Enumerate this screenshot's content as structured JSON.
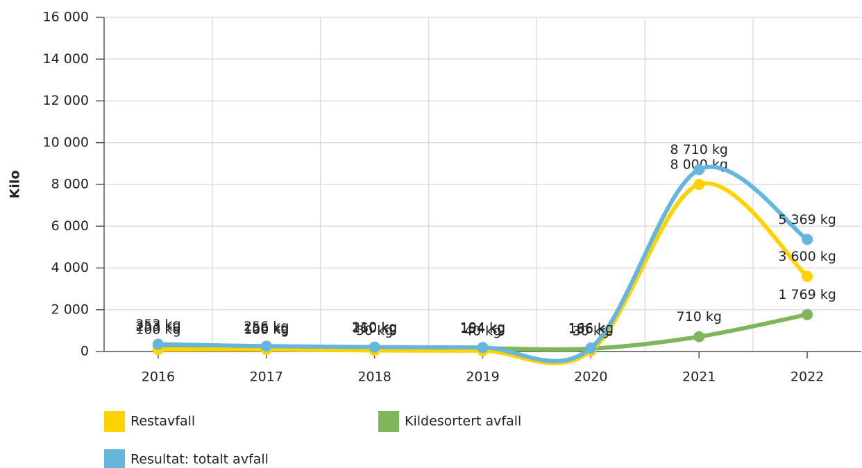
{
  "chart_data": {
    "type": "line",
    "y_label": "Kilo",
    "categories": [
      "2016",
      "2017",
      "2018",
      "2019",
      "2020",
      "2021",
      "2022"
    ],
    "series": [
      {
        "name": "Kildesortert avfall",
        "color": "#7fb65c",
        "values": [
          253,
          156,
          160,
          154,
          136,
          710,
          1769
        ],
        "value_labels": [
          "253 kg",
          "156 kg",
          "160 kg",
          "154 kg",
          "136 kg",
          "710 kg",
          "1 769 kg"
        ]
      },
      {
        "name": "Restavfall",
        "color": "#ffd200",
        "values": [
          100,
          100,
          50,
          40,
          30,
          8000,
          3600
        ],
        "value_labels": [
          "100 kg",
          "100 kg",
          "50 kg",
          "40 kg",
          "30 kg",
          "8 000 kg",
          "3 600 kg"
        ]
      },
      {
        "name": "Resultat: totalt avfall",
        "color": "#66b5dc",
        "values": [
          353,
          256,
          210,
          194,
          166,
          8710,
          5369
        ],
        "value_labels": [
          "353 kg",
          "256 kg",
          "210 kg",
          "194 kg",
          "166 kg",
          "8 710 kg",
          "5 369 kg"
        ]
      }
    ],
    "ylim": [
      0,
      16000
    ],
    "yticks": [
      0,
      {
        "value": 2000,
        "label": "2 000"
      },
      {
        "value": 4000,
        "label": "4 000"
      },
      {
        "value": 6000,
        "label": "6 000"
      },
      {
        "value": 8000,
        "label": "8 000"
      },
      {
        "value": 10000,
        "label": "10 000"
      },
      {
        "value": 12000,
        "label": "12 000"
      },
      {
        "value": 14000,
        "label": "14 000"
      },
      {
        "value": 16000,
        "label": "16 000"
      }
    ],
    "grid": true,
    "legend": "bottom"
  }
}
